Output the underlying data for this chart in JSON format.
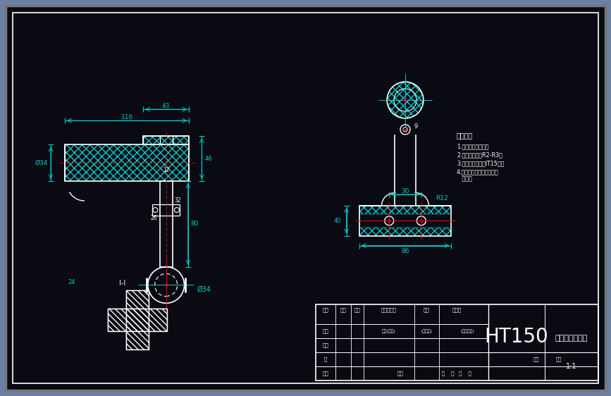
{
  "bg_color": "#6b7fa3",
  "drawing_bg": "#0a0a12",
  "line_color": "#ffffff",
  "cyan_color": "#00cccc",
  "red_color": "#ff0000",
  "title_text": "HT150",
  "drawing_title": "十字接头毛坤图",
  "tech_notes_title": "技术要求",
  "tech_note1": "1.铸件不得有缺陷。",
  "tech_note2": "2.未注铸造圆角R2-R3。",
  "tech_note3": "3.未注尺寸公差按IT15级。",
  "tech_note4": "4.未注形位公差按公差等级",
  "tech_note5": "   相应。",
  "dim_116": "116",
  "dim_43": "43",
  "dim_34a": "Ø34",
  "dim_34b": "Ø34",
  "dim_12": "12",
  "dim_26": "26",
  "dim_32": "32",
  "dim_80": "80",
  "dim_46": "46",
  "dim_24": "24",
  "dim_30": "30",
  "dim_86": "86",
  "dim_R12": "R12",
  "dim_9": "9",
  "dim_40": "40",
  "section_label": "I-I",
  "mat_label": "HT150",
  "scale_label": "1:1",
  "tb_labels": [
    "标记",
    "处数",
    "分区",
    "更改文件号",
    "签名",
    "年月日"
  ],
  "tb_row2": [
    "设计",
    "",
    "审核(签名)",
    "(年月日)",
    "(标准审定)",
    "重量",
    "比例"
  ],
  "tb_row3": "制图",
  "tb_row4": "描",
  "tb_row5_a": "工艺",
  "tb_row5_b": "标准",
  "tb_bottom": "共    页   第    页"
}
